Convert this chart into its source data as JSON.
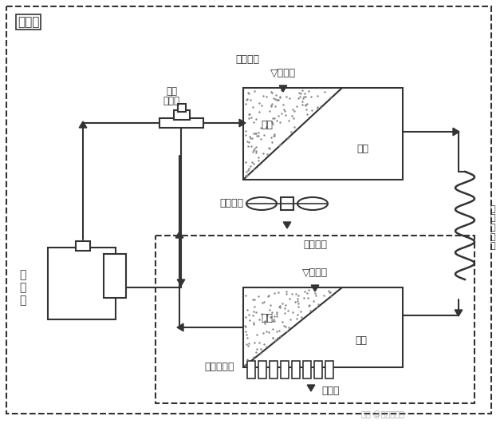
{
  "bg_color": "#f5f5f5",
  "line_color": "#333333",
  "fill_color": "#cccccc",
  "dot_fill": "#d0d0d0",
  "title": "",
  "outdoor_label": "室外机",
  "indoor_label": "室内机",
  "compressor_label": [
    "压",
    "缩",
    "机"
  ],
  "condenser_label": "冷凝器",
  "evaporator_label": "蒸发器",
  "valve_label": [
    "电磁",
    "四通阀"
  ],
  "axial_fan_label": "轴流风机",
  "cross_fan_label": "贯流风机口",
  "outdoor_air_label": "室外空气",
  "indoor_air_label": "室内空气",
  "pipe_label": [
    "制",
    "冷",
    "毛",
    "细",
    "管"
  ],
  "gas_label": "气体",
  "liquid_label": "液体",
  "watermark": "头条 @哥专修电器"
}
